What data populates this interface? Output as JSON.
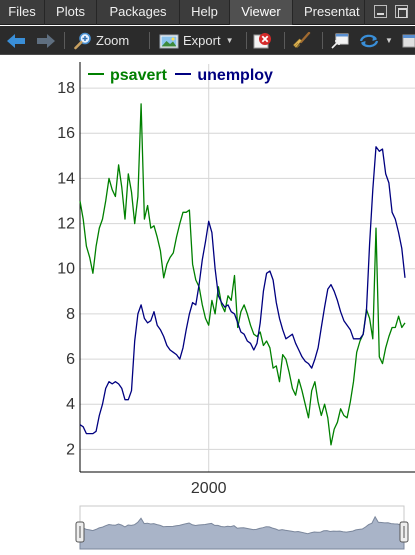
{
  "tabs": [
    {
      "label": "Files",
      "active": false
    },
    {
      "label": "Plots",
      "active": false
    },
    {
      "label": "Packages",
      "active": false
    },
    {
      "label": "Help",
      "active": false
    },
    {
      "label": "Viewer",
      "active": true
    },
    {
      "label": "Presentat",
      "active": false
    }
  ],
  "toolbar": {
    "zoom_label": "Zoom",
    "export_label": "Export"
  },
  "colors": {
    "psavert": "#008000",
    "unemploy": "#000080",
    "accent_blue": "#3a8fd8"
  },
  "legend": {
    "series1": "psavert",
    "series2": "unemploy"
  },
  "chart_data": {
    "type": "line",
    "title": "",
    "xlabel": "",
    "ylabel": "",
    "x_range": [
      "1990-01",
      "2015-04"
    ],
    "ylim": [
      1,
      18.8
    ],
    "y_ticks": [
      "2",
      "4",
      "6",
      "8",
      "10",
      "12",
      "14",
      "16",
      "18"
    ],
    "x_ticks": [
      {
        "x": 2000,
        "label": "2000"
      }
    ],
    "grid": true,
    "legend_position": "top-left",
    "range_selector": true,
    "series": [
      {
        "name": "psavert",
        "x": [
          1990.0,
          1990.25,
          1990.5,
          1990.75,
          1991.0,
          1991.25,
          1991.5,
          1991.75,
          1992.0,
          1992.25,
          1992.5,
          1992.75,
          1993.0,
          1993.25,
          1993.5,
          1993.75,
          1994.0,
          1994.25,
          1994.5,
          1994.75,
          1995.0,
          1995.25,
          1995.5,
          1995.75,
          1996.0,
          1996.25,
          1996.5,
          1996.75,
          1997.0,
          1997.25,
          1997.5,
          1997.75,
          1998.0,
          1998.25,
          1998.5,
          1998.75,
          1999.0,
          1999.25,
          1999.5,
          1999.75,
          2000.0,
          2000.25,
          2000.5,
          2000.75,
          2001.0,
          2001.25,
          2001.5,
          2001.75,
          2002.0,
          2002.25,
          2002.5,
          2002.75,
          2003.0,
          2003.25,
          2003.5,
          2003.75,
          2004.0,
          2004.25,
          2004.5,
          2004.75,
          2005.0,
          2005.25,
          2005.5,
          2005.75,
          2006.0,
          2006.25,
          2006.5,
          2006.75,
          2007.0,
          2007.25,
          2007.5,
          2007.75,
          2008.0,
          2008.25,
          2008.5,
          2008.75,
          2009.0,
          2009.25,
          2009.5,
          2009.75,
          2010.0,
          2010.25,
          2010.5,
          2010.75,
          2011.0,
          2011.25,
          2011.5,
          2011.75,
          2012.0,
          2012.25,
          2012.5,
          2012.75,
          2013.0,
          2013.25,
          2013.5,
          2013.75,
          2014.0,
          2014.25,
          2014.5,
          2014.75,
          2015.0,
          2015.25
        ],
        "values": [
          13.0,
          12.2,
          11.0,
          10.5,
          9.8,
          11.0,
          11.8,
          12.2,
          13.0,
          14.0,
          13.5,
          13.2,
          14.6,
          13.6,
          12.2,
          14.2,
          13.4,
          12.0,
          13.2,
          17.3,
          12.2,
          12.8,
          11.8,
          11.9,
          11.4,
          10.8,
          9.6,
          10.2,
          10.5,
          10.7,
          11.4,
          12.0,
          12.5,
          12.5,
          12.6,
          10.2,
          9.5,
          9.2,
          8.4,
          7.8,
          7.5,
          8.6,
          8.0,
          9.2,
          8.4,
          8.1,
          8.8,
          8.6,
          9.7,
          7.4,
          8.1,
          8.4,
          8.0,
          7.5,
          7.1,
          7.0,
          7.2,
          6.6,
          6.8,
          6.5,
          5.6,
          5.7,
          5.0,
          6.2,
          6.0,
          5.4,
          4.7,
          4.4,
          5.1,
          4.6,
          4.0,
          3.4,
          4.6,
          5.0,
          4.1,
          3.5,
          4.0,
          3.4,
          2.2,
          2.9,
          3.2,
          3.8,
          3.5,
          3.4,
          4.1,
          5.0,
          6.3,
          6.8,
          7.1,
          8.2,
          7.8,
          6.9,
          11.8,
          6.1,
          5.8,
          6.5,
          7.0,
          7.4,
          7.4,
          7.9,
          7.4,
          7.6
        ]
      },
      {
        "name": "unemploy",
        "x": [
          1990.0,
          1990.25,
          1990.5,
          1990.75,
          1991.0,
          1991.25,
          1991.5,
          1991.75,
          1992.0,
          1992.25,
          1992.5,
          1992.75,
          1993.0,
          1993.25,
          1993.5,
          1993.75,
          1994.0,
          1994.25,
          1994.5,
          1994.75,
          1995.0,
          1995.25,
          1995.5,
          1995.75,
          1996.0,
          1996.25,
          1996.5,
          1996.75,
          1997.0,
          1997.25,
          1997.5,
          1997.75,
          1998.0,
          1998.25,
          1998.5,
          1998.75,
          1999.0,
          1999.25,
          1999.5,
          1999.75,
          2000.0,
          2000.25,
          2000.5,
          2000.75,
          2001.0,
          2001.25,
          2001.5,
          2001.75,
          2002.0,
          2002.25,
          2002.5,
          2002.75,
          2003.0,
          2003.25,
          2003.5,
          2003.75,
          2004.0,
          2004.25,
          2004.5,
          2004.75,
          2005.0,
          2005.25,
          2005.5,
          2005.75,
          2006.0,
          2006.25,
          2006.5,
          2006.75,
          2007.0,
          2007.25,
          2007.5,
          2007.75,
          2008.0,
          2008.25,
          2008.5,
          2008.75,
          2009.0,
          2009.25,
          2009.5,
          2009.75,
          2010.0,
          2010.25,
          2010.5,
          2010.75,
          2011.0,
          2011.25,
          2011.5,
          2011.75,
          2012.0,
          2012.25,
          2012.5,
          2012.75,
          2013.0,
          2013.25,
          2013.5,
          2013.75,
          2014.0,
          2014.25,
          2014.5,
          2014.75,
          2015.0,
          2015.25
        ],
        "values": [
          3.1,
          3.0,
          2.7,
          2.7,
          2.7,
          2.8,
          3.5,
          4.0,
          4.7,
          5.0,
          4.9,
          5.0,
          4.9,
          4.7,
          4.2,
          4.2,
          4.6,
          6.8,
          8.0,
          8.4,
          7.8,
          7.6,
          7.7,
          8.1,
          7.5,
          7.3,
          7.0,
          6.6,
          6.4,
          6.3,
          6.2,
          6.0,
          6.5,
          7.3,
          8.0,
          8.5,
          8.4,
          9.3,
          10.4,
          11.2,
          12.1,
          11.6,
          10.0,
          8.8,
          8.5,
          8.3,
          8.4,
          8.1,
          8.0,
          7.6,
          7.2,
          7.1,
          6.8,
          6.7,
          6.4,
          6.7,
          7.6,
          9.0,
          9.8,
          9.9,
          9.5,
          8.5,
          7.8,
          7.3,
          6.9,
          7.0,
          7.1,
          6.7,
          6.4,
          6.1,
          5.9,
          5.8,
          5.6,
          6.0,
          6.5,
          7.4,
          8.3,
          9.1,
          9.3,
          9.0,
          8.6,
          8.1,
          7.7,
          7.5,
          7.3,
          6.9,
          6.9,
          6.9,
          7.1,
          8.1,
          11.1,
          13.5,
          15.4,
          15.2,
          15.3,
          14.2,
          13.8,
          12.5,
          12.2,
          11.6,
          10.9,
          9.6
        ]
      }
    ]
  }
}
